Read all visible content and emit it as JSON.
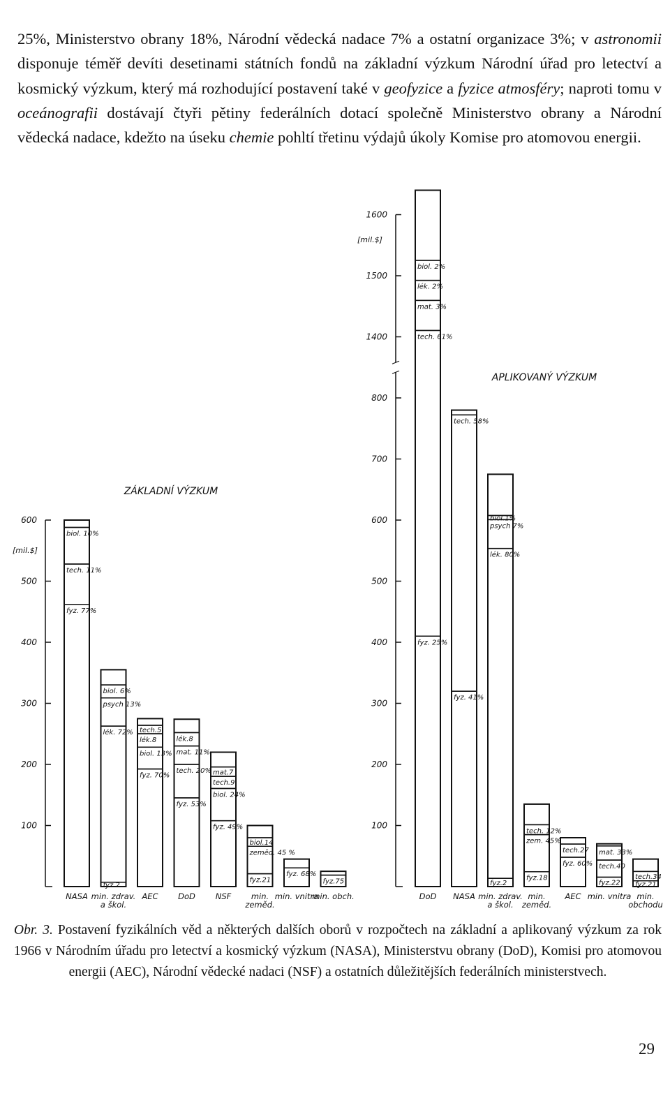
{
  "paragraph": [
    {
      "text": "25%, Ministerstvo obrany 18%, Národní vědecká nadace 7% a ostatní organizace 3%; v ",
      "italic": false
    },
    {
      "text": "astronomii",
      "italic": true
    },
    {
      "text": " disponuje téměř devíti desetinami státních fondů na základní výzkum Národní úřad pro letectví a kosmický výzkum, který má rozhodující postavení také v ",
      "italic": false
    },
    {
      "text": "geofyzice",
      "italic": true
    },
    {
      "text": " a ",
      "italic": false
    },
    {
      "text": "fyzice atmosféry",
      "italic": true
    },
    {
      "text": "; naproti tomu v ",
      "italic": false
    },
    {
      "text": "oceánografii",
      "italic": true
    },
    {
      "text": " dostávají čtyři pětiny federálních dotací společně Ministerstvo obrany a Národní vědecká nadace, kdežto na úseku ",
      "italic": false
    },
    {
      "text": "chemie",
      "italic": true
    },
    {
      "text": " pohltí třetinu výdajů úkoly Komise pro atomovou energii.",
      "italic": false
    }
  ],
  "chart_data": [
    {
      "type": "stacked_bar",
      "title": "ZÁKLADNÍ VÝZKUM",
      "y_unit": "[mil.$]",
      "color": "#111111",
      "categories": [
        "NASA",
        "min. zdrav. a škol.",
        "AEC",
        "DoD",
        "NSF",
        "min. zeměd.",
        "min. vnitra",
        "min. obch."
      ],
      "values": [
        600,
        355,
        275,
        274,
        220,
        100,
        45,
        25
      ],
      "segments": [
        [
          {
            "label": "fyz. 77%",
            "value": 77
          },
          {
            "label": "tech. 11%",
            "value": 11
          },
          {
            "label": "biol. 10%",
            "value": 10
          },
          {
            "label": null,
            "value": 2
          }
        ],
        [
          {
            "label": "fyz.2",
            "value": 2
          },
          {
            "label": "lék. 72%",
            "value": 72
          },
          {
            "label": "psych 13%",
            "value": 13
          },
          {
            "label": "biol. 6%",
            "value": 6
          },
          {
            "label": null,
            "value": 7
          }
        ],
        [
          {
            "label": "fyz. 70%",
            "value": 70
          },
          {
            "label": "biol. 13%",
            "value": 13
          },
          {
            "label": "lék.8",
            "value": 8
          },
          {
            "label": "tech.5",
            "value": 5
          },
          {
            "label": null,
            "value": 4
          }
        ],
        [
          {
            "label": "fyz. 53%",
            "value": 53
          },
          {
            "label": "tech. 20%",
            "value": 20
          },
          {
            "label": "mat. 11%",
            "value": 11
          },
          {
            "label": "lék.8",
            "value": 8
          },
          {
            "label": null,
            "value": 8
          }
        ],
        [
          {
            "label": "fyz. 49%",
            "value": 49
          },
          {
            "label": "biol. 24%",
            "value": 24
          },
          {
            "label": "tech.9",
            "value": 9
          },
          {
            "label": "mat.7",
            "value": 7
          },
          {
            "label": null,
            "value": 11
          }
        ],
        [
          {
            "label": "fyz.21",
            "value": 21
          },
          {
            "label": "zeměd. 45 %",
            "value": 45
          },
          {
            "label": "biol.14",
            "value": 14
          },
          {
            "label": null,
            "value": 20
          }
        ],
        [
          {
            "label": "fyz. 68%",
            "value": 68
          },
          {
            "label": null,
            "value": 32
          }
        ],
        [
          {
            "label": "fyz.75",
            "value": 75
          },
          {
            "label": null,
            "value": 25
          }
        ]
      ],
      "ylim": [
        0,
        600
      ],
      "yticks": [
        100,
        200,
        300,
        400,
        500,
        600
      ]
    },
    {
      "type": "stacked_bar",
      "title": "APLIKOVANÝ VÝZKUM",
      "y_unit": "[mil.$]",
      "color": "#111111",
      "categories": [
        "DoD",
        "NASA",
        "min. zdrav. a škol.",
        "min. zeměd.",
        "AEC",
        "min. vnitra",
        "min. obchodu"
      ],
      "values": [
        1640,
        780,
        675,
        135,
        80,
        70,
        45
      ],
      "segments": [
        [
          {
            "label": "fyz. 25%",
            "value": 25
          },
          {
            "label": "tech. 61%",
            "value": 61
          },
          {
            "label": "mat. 3%",
            "value": 3
          },
          {
            "label": "lék. 2%",
            "value": 2
          },
          {
            "label": "biol. 2%",
            "value": 2
          },
          {
            "label": null,
            "value": 7
          }
        ],
        [
          {
            "label": "fyz. 41%",
            "value": 41
          },
          {
            "label": "tech. 58%",
            "value": 58
          },
          {
            "label": null,
            "value": 1
          }
        ],
        [
          {
            "label": "fyz.2",
            "value": 2
          },
          {
            "label": "lék. 80%",
            "value": 80
          },
          {
            "label": "psych 7%",
            "value": 7
          },
          {
            "label": "biol.1%",
            "value": 1
          },
          {
            "label": null,
            "value": 10
          }
        ],
        [
          {
            "label": "fyz.18",
            "value": 18
          },
          {
            "label": "zem. 45%",
            "value": 45
          },
          {
            "label": "tech. 12%",
            "value": 12
          },
          {
            "label": null,
            "value": 25
          }
        ],
        [
          {
            "label": "fyz. 60%",
            "value": 60
          },
          {
            "label": "tech.27",
            "value": 27
          },
          {
            "label": null,
            "value": 13
          }
        ],
        [
          {
            "label": "fyz.22",
            "value": 22
          },
          {
            "label": "tech.40",
            "value": 40
          },
          {
            "label": "mat. 33%",
            "value": 33
          },
          {
            "label": null,
            "value": 5
          }
        ],
        [
          {
            "label": "fyz.21",
            "value": 21
          },
          {
            "label": "tech.34",
            "value": 34
          },
          {
            "label": null,
            "value": 45
          }
        ]
      ],
      "ylim": [
        0,
        1600
      ],
      "yticks": [
        100,
        200,
        300,
        400,
        500,
        600,
        700,
        800,
        1400,
        1500,
        1600
      ],
      "axis_break": [
        850,
        1350
      ]
    }
  ],
  "caption": [
    {
      "text": "Obr. 3.",
      "italic": true
    },
    {
      "text": " Postavení fyzikálních věd a některých dalších oborů v rozpočtech na základní a aplikovaný výzkum za rok 1966 v Národním úřadu pro letectví a kosmický výzkum (NASA), Ministerstvu obrany (DoD), Komisi pro atomovou energii (AEC), Národní vědecké nadaci (NSF) a ostatních důležitějších federálních ministerstvech.",
      "italic": false
    }
  ],
  "page_number": "29"
}
